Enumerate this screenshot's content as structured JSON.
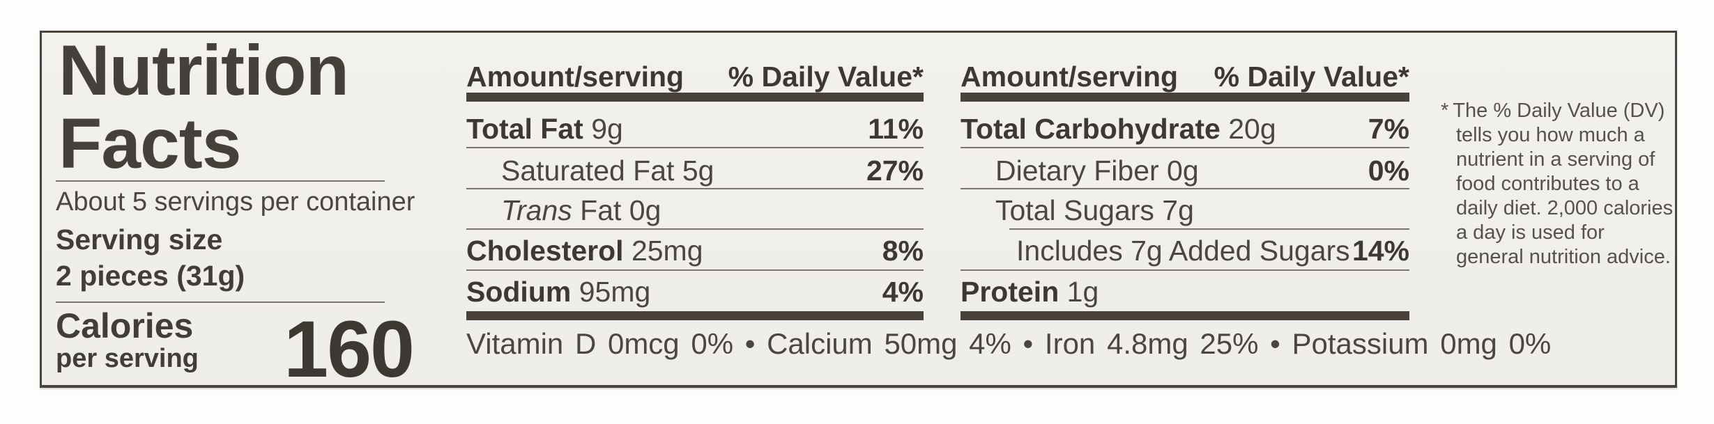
{
  "label": {
    "title_line1": "Nutrition",
    "title_line2": "Facts",
    "servings_per_container": "About 5 servings per container",
    "serving_size_label": "Serving size",
    "serving_size_value": "2 pieces (31g)",
    "calories_word": "Calories",
    "calories_subword": "per serving",
    "calories_value": "160",
    "columns": [
      {
        "header_amount": "Amount/serving",
        "header_dv": "% Daily Value*",
        "rows": [
          {
            "bold": "Total Fat",
            "rest": " 9g",
            "dv": "11%"
          },
          {
            "bold": "",
            "rest": "Saturated Fat 5g",
            "dv": "27%"
          },
          {
            "italic": "Trans",
            "rest": " Fat 0g",
            "dv": ""
          },
          {
            "bold": "Cholesterol",
            "rest": " 25mg",
            "dv": "8%"
          },
          {
            "bold": "Sodium",
            "rest": " 95mg",
            "dv": "4%"
          }
        ]
      },
      {
        "header_amount": "Amount/serving",
        "header_dv": "% Daily Value*",
        "rows": [
          {
            "bold": "Total Carbohydrate",
            "rest": " 20g",
            "dv": "7%"
          },
          {
            "bold": "",
            "rest": "Dietary Fiber 0g",
            "dv": "0%"
          },
          {
            "bold": "",
            "rest": "Total Sugars 7g",
            "dv": ""
          },
          {
            "bold": "",
            "rest": "Includes 7g Added Sugars",
            "dv": "14%"
          },
          {
            "bold": "Protein",
            "rest": " 1g",
            "dv": ""
          }
        ]
      }
    ],
    "micronutrients_line": "Vitamin D 0mcg 0% • Calcium 50mg 4% • Iron 4.8mg 25% • Potassium 0mg 0%",
    "footnote_asterisk": "*",
    "footnote_text": "The % Daily Value (DV) tells you how much a nutrient in a serving of food contributes to a daily diet. 2,000 calories a day is used for general nutrition advice.",
    "colors": {
      "text": "#423c36",
      "bar": "#49423b",
      "hairline": "#7b756e",
      "label_bg": "#f1efeb",
      "page_bg": "#fdfdfc"
    }
  }
}
